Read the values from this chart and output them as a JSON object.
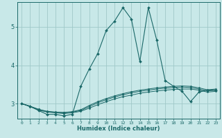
{
  "title": "",
  "xlabel": "Humidex (Indice chaleur)",
  "bg_color": "#c8e8e8",
  "grid_color": "#a0c8c8",
  "line_color": "#1a6868",
  "xlim": [
    -0.5,
    23.5
  ],
  "ylim": [
    2.6,
    5.65
  ],
  "yticks": [
    3,
    4,
    5
  ],
  "xticks": [
    0,
    1,
    2,
    3,
    4,
    5,
    6,
    7,
    8,
    9,
    10,
    11,
    12,
    13,
    14,
    15,
    16,
    17,
    18,
    19,
    20,
    21,
    22,
    23
  ],
  "series": [
    {
      "x": [
        0,
        1,
        2,
        3,
        4,
        5,
        6,
        7,
        8,
        9,
        10,
        11,
        12,
        13,
        14,
        15,
        16,
        17,
        18,
        19,
        20,
        21,
        22,
        23
      ],
      "y": [
        3.0,
        2.93,
        2.82,
        2.72,
        2.72,
        2.68,
        2.72,
        3.45,
        3.9,
        4.3,
        4.9,
        5.15,
        5.5,
        5.2,
        4.1,
        5.5,
        4.65,
        3.6,
        3.45,
        3.32,
        3.05,
        3.3,
        3.35,
        3.35
      ]
    },
    {
      "x": [
        0,
        1,
        2,
        3,
        4,
        5,
        6,
        7,
        8,
        9,
        10,
        11,
        12,
        13,
        14,
        15,
        16,
        17,
        18,
        19,
        20,
        21,
        22,
        23
      ],
      "y": [
        3.0,
        2.92,
        2.83,
        2.78,
        2.76,
        2.74,
        2.76,
        2.8,
        2.88,
        2.97,
        3.05,
        3.12,
        3.18,
        3.22,
        3.27,
        3.3,
        3.33,
        3.35,
        3.37,
        3.38,
        3.38,
        3.35,
        3.3,
        3.32
      ]
    },
    {
      "x": [
        0,
        1,
        2,
        3,
        4,
        5,
        6,
        7,
        8,
        9,
        10,
        11,
        12,
        13,
        14,
        15,
        16,
        17,
        18,
        19,
        20,
        21,
        22,
        23
      ],
      "y": [
        3.0,
        2.93,
        2.85,
        2.79,
        2.77,
        2.76,
        2.78,
        2.82,
        2.92,
        3.02,
        3.1,
        3.17,
        3.23,
        3.28,
        3.32,
        3.35,
        3.38,
        3.4,
        3.42,
        3.43,
        3.42,
        3.38,
        3.33,
        3.35
      ]
    },
    {
      "x": [
        0,
        1,
        2,
        3,
        4,
        5,
        6,
        7,
        8,
        9,
        10,
        11,
        12,
        13,
        14,
        15,
        16,
        17,
        18,
        19,
        20,
        21,
        22,
        23
      ],
      "y": [
        3.0,
        2.93,
        2.85,
        2.8,
        2.78,
        2.77,
        2.79,
        2.84,
        2.95,
        3.05,
        3.13,
        3.2,
        3.26,
        3.31,
        3.35,
        3.38,
        3.41,
        3.43,
        3.45,
        3.46,
        3.45,
        3.41,
        3.36,
        3.38
      ]
    }
  ]
}
